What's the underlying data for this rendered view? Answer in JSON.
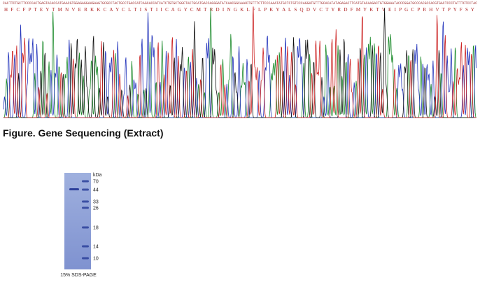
{
  "sequence": {
    "dna": "CACTTCTGCTTCCCCACTGAGTACACCATGAACGTGGAGAGGAAGAAGTGCGCCTACTGCCTGACCATCAGCACCATCATCTGTGCTGGCTACTGCATGACCAGGGATATCAACGGCAAACTGTTTCTTCCCAAATATGCTCTGTCCCAGGATGTTTGCACATATAGAGACTTCATGTACAAGACTGTGGAAATACCCGGATGCCCACGCCACGTGACTCCCTATTTCTCCTAC",
    "protein": "H F C F P T E Y T M N V E R K K C A Y C L T I S T I I C A G Y C M T R D I N G K L F L P K Y A L S Q D V C T Y R D F M Y K T V E I P G C P R H V T P Y F S Y"
  },
  "caption": "Figure. Gene Sequencing (Extract)",
  "gel": {
    "unit": "kDa",
    "markers": [
      "70",
      "44",
      "33",
      "26",
      "18",
      "14",
      "10"
    ],
    "caption": "15% SDS-PAGE"
  }
}
